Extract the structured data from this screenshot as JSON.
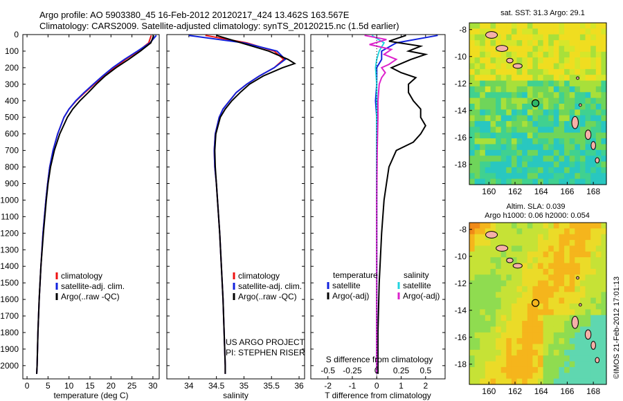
{
  "header": {
    "title_line1": "Argo profile: AO 5903380_45 16-Feb-2012 20120217_424 13.462S 163.567E",
    "title_line2": "Climatology: CARS2009. Satellite-adjusted climatology: synTS_20120215.nc (1.5d earlier)"
  },
  "colors": {
    "climatology": "#ee1111",
    "satellite": "#1122dd",
    "argo": "#000000",
    "satellite_salinity": "#22d4e0",
    "argo_salinity": "#dd22cc"
  },
  "chart_data": [
    {
      "type": "line",
      "xlabel": "temperature (deg C)",
      "ylabel": "",
      "xlim": [
        -1,
        31.5
      ],
      "ylim": [
        2080,
        0
      ],
      "x_ticks": [
        0,
        5,
        10,
        15,
        20,
        25,
        30
      ],
      "y_ticks": [
        0,
        100,
        200,
        300,
        400,
        500,
        600,
        700,
        800,
        900,
        1000,
        1100,
        1200,
        1300,
        1400,
        1500,
        1600,
        1700,
        1800,
        1900,
        2000
      ],
      "legend": [
        "climatology",
        "satellite-adj. clim.",
        "Argo(..raw -QC)"
      ],
      "series": [
        {
          "name": "climatology",
          "depth": [
            5,
            50,
            100,
            150,
            200,
            250,
            300,
            350,
            400,
            450,
            500,
            600,
            700,
            800,
            900,
            1000,
            1200,
            1400,
            1600,
            1800,
            2000,
            2050
          ],
          "values": [
            29.6,
            29.0,
            26.5,
            23.5,
            20.8,
            18.3,
            16.0,
            13.8,
            11.7,
            10.0,
            8.8,
            7.3,
            6.2,
            5.4,
            4.9,
            4.5,
            3.8,
            3.3,
            2.9,
            2.6,
            2.4,
            2.3
          ]
        },
        {
          "name": "satellite-adj. clim.",
          "depth": [
            5,
            50,
            100,
            150,
            200,
            250,
            300,
            350,
            400,
            450,
            500,
            600,
            700,
            800,
            900,
            1000,
            1200,
            1400,
            1600,
            1800,
            2000,
            2050
          ],
          "values": [
            30.8,
            29.3,
            26.3,
            23.2,
            20.4,
            18.0,
            15.8,
            13.6,
            11.6,
            10.0,
            8.8,
            7.3,
            6.2,
            5.4,
            4.9,
            4.5,
            3.8,
            3.3,
            2.9,
            2.6,
            2.4,
            2.3
          ]
        },
        {
          "name": "Argo(..raw -QC)",
          "depth": [
            5,
            50,
            100,
            150,
            200,
            250,
            300,
            350,
            400,
            450,
            500,
            600,
            700,
            800,
            900,
            1000,
            1200,
            1400,
            1600,
            1800,
            2000,
            2050
          ],
          "values": [
            30.2,
            29.5,
            27.0,
            24.2,
            21.2,
            18.6,
            16.5,
            14.6,
            12.6,
            10.9,
            9.6,
            7.8,
            6.5,
            5.6,
            5.0,
            4.6,
            3.9,
            3.3,
            2.9,
            2.6,
            2.4,
            2.3
          ]
        }
      ]
    },
    {
      "type": "line",
      "xlabel": "salinity",
      "ylabel": "",
      "xlim": [
        33.6,
        36.1
      ],
      "ylim": [
        2080,
        0
      ],
      "x_ticks": [
        34,
        34.5,
        35,
        35.5,
        36
      ],
      "legend": [
        "climatology",
        "satellite-adj. clim.",
        "Argo(..raw -QC)"
      ],
      "annotations": [
        "US ARGO PROJECT",
        "PI: STEPHEN RISER"
      ],
      "series": [
        {
          "name": "climatology",
          "depth": [
            5,
            50,
            100,
            150,
            200,
            250,
            300,
            350,
            400,
            450,
            500,
            600,
            700,
            800,
            900,
            1000,
            1200,
            1400,
            1600,
            1800,
            2000,
            2050
          ],
          "values": [
            34.3,
            35.05,
            35.55,
            35.72,
            35.55,
            35.28,
            35.05,
            34.86,
            34.74,
            34.62,
            34.55,
            34.48,
            34.46,
            34.47,
            34.5,
            34.52,
            34.56,
            34.59,
            34.62,
            34.64,
            34.66,
            34.66
          ]
        },
        {
          "name": "satellite-adj. clim.",
          "depth": [
            5,
            50,
            100,
            150,
            200,
            250,
            300,
            350,
            400,
            450,
            500,
            600,
            700,
            800,
            900,
            1000,
            1200,
            1400,
            1600,
            1800,
            2000,
            2050
          ],
          "values": [
            34.0,
            35.0,
            35.6,
            35.75,
            35.55,
            35.28,
            35.05,
            34.86,
            34.74,
            34.62,
            34.55,
            34.48,
            34.46,
            34.47,
            34.5,
            34.52,
            34.56,
            34.59,
            34.62,
            34.64,
            34.66,
            34.66
          ]
        },
        {
          "name": "Argo(..raw -QC)",
          "depth": [
            5,
            50,
            100,
            150,
            175,
            200,
            250,
            300,
            350,
            400,
            450,
            500,
            600,
            700,
            800,
            900,
            1000,
            1200,
            1400,
            1600,
            1800,
            2000,
            2050
          ],
          "values": [
            34.5,
            34.95,
            35.45,
            35.8,
            35.92,
            35.7,
            35.35,
            35.1,
            34.93,
            34.78,
            34.66,
            34.57,
            34.49,
            34.47,
            34.48,
            34.5,
            34.52,
            34.56,
            34.59,
            34.62,
            34.64,
            34.66,
            34.66
          ]
        }
      ]
    },
    {
      "type": "line",
      "xlabel": "T difference from climatology",
      "xlabel_top": "S difference from climatology",
      "xlim": [
        -2.7,
        2.8
      ],
      "ylim": [
        2080,
        0
      ],
      "x_ticks": [
        -2,
        -1,
        0,
        1,
        2
      ],
      "x_tick_labels_s": [
        "-0.5",
        "-0.25",
        "0",
        "0.25",
        "0.5"
      ],
      "legend_headers": [
        "temperature",
        "salinity"
      ],
      "legend": [
        "satellite",
        "Argo(-adj)",
        "satellite",
        "Argo(-adj)"
      ],
      "series": [
        {
          "name": "temperature satellite",
          "depth": [
            5,
            50,
            100,
            150,
            200,
            250,
            300,
            400,
            500,
            700,
            1000,
            1500,
            2000,
            2050
          ],
          "values": [
            2.5,
            0.8,
            0.2,
            0.2,
            0.0,
            0.0,
            0.0,
            -0.05,
            0.0,
            0.0,
            0.0,
            0.0,
            0.0,
            0.0
          ]
        },
        {
          "name": "temperature Argo(-adj)",
          "depth": [
            5,
            40,
            70,
            100,
            120,
            150,
            175,
            200,
            230,
            260,
            300,
            350,
            400,
            450,
            500,
            550,
            600,
            650,
            700,
            800,
            900,
            1000,
            1200,
            1500,
            1800,
            2000,
            2050
          ],
          "values": [
            1.2,
            0.5,
            1.8,
            1.3,
            2.0,
            1.4,
            1.0,
            0.6,
            1.0,
            1.6,
            1.3,
            1.3,
            1.5,
            1.8,
            1.8,
            2.0,
            1.8,
            1.5,
            0.8,
            0.5,
            0.4,
            0.3,
            0.2,
            0.1,
            0.05,
            0.05,
            0.05
          ]
        },
        {
          "name": "salinity satellite",
          "depth": [
            5,
            50,
            100,
            150,
            200,
            300,
            400,
            500,
            700,
            1000,
            1500,
            2000,
            2050
          ],
          "values": [
            -0.2,
            0.3,
            0.1,
            0.0,
            -0.05,
            0.0,
            0.0,
            0.0,
            0.0,
            0.0,
            0.0,
            0.0,
            0.0
          ]
        },
        {
          "name": "salinity Argo(-adj)",
          "depth": [
            5,
            30,
            60,
            90,
            120,
            150,
            180,
            200,
            230,
            260,
            300,
            400,
            500,
            700,
            1000,
            1500,
            2000,
            2050
          ],
          "values": [
            -0.5,
            0.4,
            -0.3,
            0.6,
            0.3,
            0.8,
            0.5,
            0.2,
            0.35,
            0.2,
            0.1,
            0.05,
            0.05,
            0.02,
            0.0,
            0.0,
            0.0,
            0.0
          ]
        }
      ]
    },
    {
      "type": "heatmap",
      "title": "sat. SST: 31.3  Argo: 29.1",
      "xlim": [
        158.5,
        169
      ],
      "ylim": [
        -19.5,
        -7.5
      ],
      "x_ticks": [
        160,
        162,
        164,
        166,
        168
      ],
      "y_ticks": [
        -8,
        -10,
        -12,
        -14,
        -16,
        -18
      ],
      "marker": {
        "lon": 163.567,
        "lat": -13.462
      }
    },
    {
      "type": "heatmap",
      "title": "Altim. SLA: 0.039",
      "subtitle": "Argo h1000: 0.06  h2000: 0.054",
      "xlim": [
        158.5,
        169
      ],
      "ylim": [
        -19.5,
        -7.5
      ],
      "x_ticks": [
        160,
        162,
        164,
        166,
        168
      ],
      "y_ticks": [
        -8,
        -10,
        -12,
        -14,
        -16,
        -18
      ],
      "marker": {
        "lon": 163.567,
        "lat": -13.462
      }
    }
  ],
  "credit": "©IMOS 21-Feb-2012 17:01:13"
}
